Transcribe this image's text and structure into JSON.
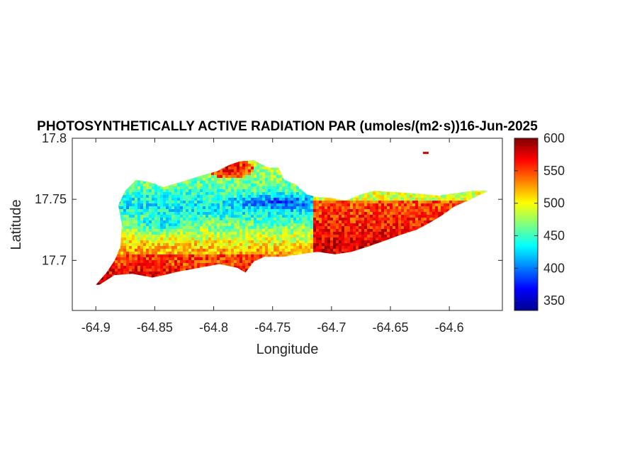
{
  "chart_data": {
    "type": "heatmap",
    "title": "PHOTOSYNTHETICALLY ACTIVE RADIATION PAR (umoles/(m2·s))16-Jun-2025",
    "xlabel": "Longitude",
    "ylabel": "Latitude",
    "xlim": [
      -64.92,
      -64.555
    ],
    "ylim": [
      17.659,
      17.8
    ],
    "x_ticks": [
      -64.9,
      -64.85,
      -64.8,
      -64.75,
      -64.7,
      -64.65,
      -64.6
    ],
    "x_tick_labels": [
      "-64.9",
      "-64.85",
      "-64.8",
      "-64.75",
      "-64.7",
      "-64.65",
      "-64.6"
    ],
    "y_ticks": [
      17.7,
      17.75,
      17.8
    ],
    "y_tick_labels": [
      "17.7",
      "17.75",
      "17.8"
    ],
    "grid": false,
    "colormap": "jet",
    "colorbar": {
      "range": [
        335,
        600
      ],
      "ticks": [
        350,
        400,
        450,
        500,
        550,
        600
      ],
      "tick_labels": [
        "350",
        "400",
        "450",
        "500",
        "550",
        "600"
      ]
    },
    "region_outline": [
      [
        -64.9,
        17.68
      ],
      [
        -64.891,
        17.69
      ],
      [
        -64.884,
        17.7
      ],
      [
        -64.879,
        17.712
      ],
      [
        -64.878,
        17.73
      ],
      [
        -64.881,
        17.745
      ],
      [
        -64.875,
        17.757
      ],
      [
        -64.866,
        17.766
      ],
      [
        -64.854,
        17.764
      ],
      [
        -64.843,
        17.76
      ],
      [
        -64.828,
        17.764
      ],
      [
        -64.812,
        17.769
      ],
      [
        -64.797,
        17.773
      ],
      [
        -64.787,
        17.778
      ],
      [
        -64.778,
        17.781
      ],
      [
        -64.766,
        17.782
      ],
      [
        -64.754,
        17.776
      ],
      [
        -64.745,
        17.776
      ],
      [
        -64.74,
        17.766
      ],
      [
        -64.73,
        17.762
      ],
      [
        -64.721,
        17.754
      ],
      [
        -64.713,
        17.752
      ],
      [
        -64.7,
        17.751
      ],
      [
        -64.688,
        17.749
      ],
      [
        -64.675,
        17.754
      ],
      [
        -64.664,
        17.757
      ],
      [
        -64.649,
        17.756
      ],
      [
        -64.631,
        17.755
      ],
      [
        -64.609,
        17.753
      ],
      [
        -64.595,
        17.755
      ],
      [
        -64.58,
        17.757
      ],
      [
        -64.567,
        17.757
      ],
      [
        -64.571,
        17.755
      ],
      [
        -64.582,
        17.75
      ],
      [
        -64.596,
        17.744
      ],
      [
        -64.606,
        17.737
      ],
      [
        -64.618,
        17.73
      ],
      [
        -64.628,
        17.725
      ],
      [
        -64.641,
        17.721
      ],
      [
        -64.655,
        17.716
      ],
      [
        -64.67,
        17.711
      ],
      [
        -64.683,
        17.707
      ],
      [
        -64.697,
        17.705
      ],
      [
        -64.712,
        17.707
      ],
      [
        -64.727,
        17.705
      ],
      [
        -64.741,
        17.703
      ],
      [
        -64.752,
        17.703
      ],
      [
        -64.757,
        17.703
      ],
      [
        -64.766,
        17.699
      ],
      [
        -64.773,
        17.69
      ],
      [
        -64.78,
        17.694
      ],
      [
        -64.795,
        17.697
      ],
      [
        -64.812,
        17.694
      ],
      [
        -64.829,
        17.691
      ],
      [
        -64.842,
        17.688
      ],
      [
        -64.852,
        17.686
      ],
      [
        -64.869,
        17.689
      ],
      [
        -64.884,
        17.688
      ],
      [
        -64.897,
        17.68
      ]
    ],
    "islet": [
      -64.62,
      17.788
    ],
    "value_field": {
      "north_fringe": 480,
      "north_interior": 430,
      "core_minimum": 370,
      "south_coast": 560,
      "east_end": 555,
      "central_band_low": 395
    }
  }
}
